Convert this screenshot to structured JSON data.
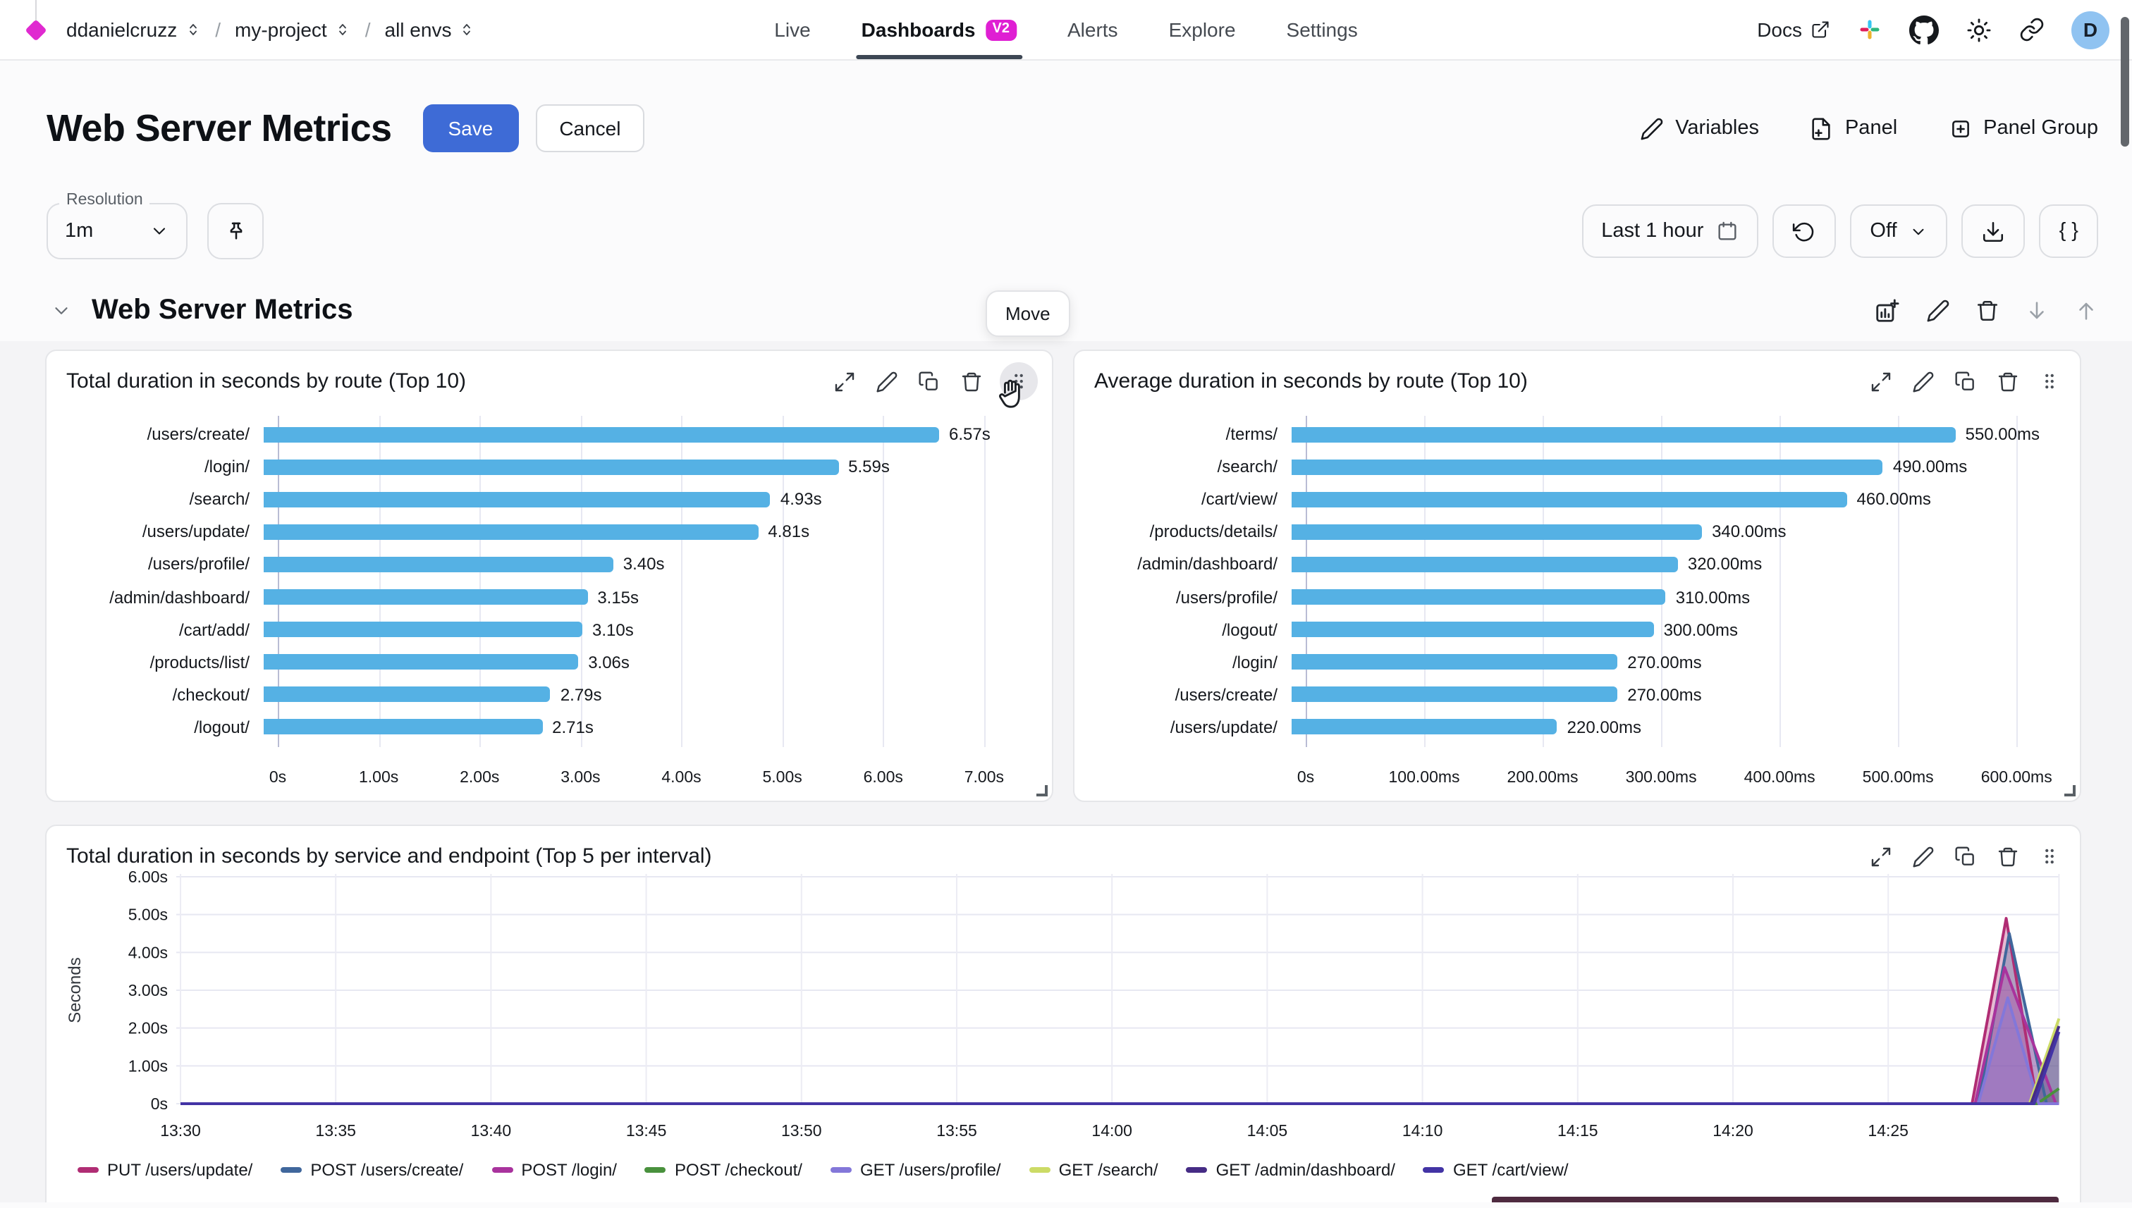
{
  "colors": {
    "accent_blue": "#3e6bd6",
    "bar_blue": "#55b1e4",
    "badge_magenta": "#df1fd3",
    "logo_magenta": "#e02ad0",
    "avatar_bg": "#90c3f1",
    "grid_line": "#e7e8f2",
    "axis_line": "#b9bcd4",
    "group_bg": "#f4f4f6"
  },
  "icons": [
    "diamond-logo",
    "chevrons-updown",
    "external-link",
    "slack",
    "github",
    "sun",
    "link",
    "pencil",
    "file-plus",
    "square-plus",
    "pin",
    "calendar",
    "refresh",
    "chevron-down",
    "download",
    "braces",
    "chart-plus",
    "trash",
    "arrow-down",
    "arrow-up",
    "expand",
    "copy",
    "grip-dots",
    "hand-cursor"
  ],
  "nav": {
    "breadcrumb": {
      "org": "ddanielcruzz",
      "project": "my-project",
      "env": "all envs",
      "separator": "/"
    },
    "items": [
      {
        "label": "Live",
        "active": false
      },
      {
        "label": "Dashboards",
        "active": true,
        "badge": "V2"
      },
      {
        "label": "Alerts",
        "active": false
      },
      {
        "label": "Explore",
        "active": false
      },
      {
        "label": "Settings",
        "active": false
      }
    ],
    "docs_label": "Docs",
    "avatar_initial": "D"
  },
  "header": {
    "title": "Web Server Metrics",
    "save_label": "Save",
    "cancel_label": "Cancel",
    "actions": [
      {
        "label": "Variables",
        "icon": "pencil-icon"
      },
      {
        "label": "Panel",
        "icon": "file-plus-icon"
      },
      {
        "label": "Panel Group",
        "icon": "square-plus-icon"
      }
    ]
  },
  "toolbar": {
    "resolution_label": "Resolution",
    "resolution_value": "1m",
    "time_range": "Last 1 hour",
    "refresh_off": "Off",
    "braces_label": "{ }"
  },
  "section": {
    "title": "Web Server Metrics",
    "move_tooltip": "Move"
  },
  "panels": [
    {
      "title": "Total duration in seconds by route (Top 10)"
    },
    {
      "title": "Average duration in seconds by route (Top 10)"
    },
    {
      "title": "Total duration in seconds by service and endpoint (Top 5 per interval)"
    }
  ],
  "chart_data": [
    {
      "type": "bar",
      "orientation": "horizontal",
      "title": "Total duration in seconds by route (Top 10)",
      "categories": [
        "/users/create/",
        "/login/",
        "/search/",
        "/users/update/",
        "/users/profile/",
        "/admin/dashboard/",
        "/cart/add/",
        "/products/list/",
        "/checkout/",
        "/logout/"
      ],
      "values": [
        6.57,
        5.59,
        4.93,
        4.81,
        3.4,
        3.15,
        3.1,
        3.06,
        2.79,
        2.71
      ],
      "value_labels": [
        "6.57s",
        "5.59s",
        "4.93s",
        "4.81s",
        "3.40s",
        "3.15s",
        "3.10s",
        "3.06s",
        "2.79s",
        "2.71s"
      ],
      "unit": "s",
      "xlim": [
        0,
        7.42
      ],
      "bar_color": "#55b1e4",
      "ticks": [
        {
          "value": 0,
          "label": "0s"
        },
        {
          "value": 1,
          "label": "1.00s"
        },
        {
          "value": 2,
          "label": "2.00s"
        },
        {
          "value": 3,
          "label": "3.00s"
        },
        {
          "value": 4,
          "label": "4.00s"
        },
        {
          "value": 5,
          "label": "5.00s"
        },
        {
          "value": 6,
          "label": "6.00s"
        },
        {
          "value": 7,
          "label": "7.00s"
        }
      ]
    },
    {
      "type": "bar",
      "orientation": "horizontal",
      "title": "Average duration in seconds by route (Top 10)",
      "categories": [
        "/terms/",
        "/search/",
        "/cart/view/",
        "/products/details/",
        "/admin/dashboard/",
        "/users/profile/",
        "/logout/",
        "/login/",
        "/users/create/",
        "/users/update/"
      ],
      "values": [
        550,
        490,
        460,
        340,
        320,
        310,
        300,
        270,
        270,
        220
      ],
      "value_labels": [
        "550.00ms",
        "490.00ms",
        "460.00ms",
        "340.00ms",
        "320.00ms",
        "310.00ms",
        "300.00ms",
        "270.00ms",
        "270.00ms",
        "220.00ms"
      ],
      "unit": "ms",
      "xlim": [
        0,
        632
      ],
      "bar_color": "#55b1e4",
      "ticks": [
        {
          "value": 0,
          "label": "0s"
        },
        {
          "value": 100,
          "label": "100.00ms"
        },
        {
          "value": 200,
          "label": "200.00ms"
        },
        {
          "value": 300,
          "label": "300.00ms"
        },
        {
          "value": 400,
          "label": "400.00ms"
        },
        {
          "value": 500,
          "label": "500.00ms"
        },
        {
          "value": 600,
          "label": "600.00ms"
        }
      ]
    },
    {
      "type": "area",
      "title": "Total duration in seconds by service and endpoint (Top 5 per interval)",
      "ylabel": "Seconds",
      "ylim": [
        0,
        6
      ],
      "yticks": [
        "0s",
        "1.00s",
        "2.00s",
        "3.00s",
        "4.00s",
        "5.00s",
        "6.00s"
      ],
      "xticks": [
        "13:30",
        "13:35",
        "13:40",
        "13:45",
        "13:50",
        "13:55",
        "14:00",
        "14:05",
        "14:10",
        "14:15",
        "14:20",
        "14:25"
      ],
      "x_minutes_per_tick": 5,
      "series": [
        {
          "name": "PUT /users/update/",
          "color": "#b02d74",
          "points": [
            [
              0,
              0
            ],
            [
              57.7,
              0
            ],
            [
              58.8,
              4.9
            ],
            [
              59.8,
              0
            ],
            [
              60.5,
              0
            ]
          ]
        },
        {
          "name": "POST /users/create/",
          "color": "#40679c",
          "points": [
            [
              0,
              0
            ],
            [
              57.9,
              0
            ],
            [
              58.9,
              4.5
            ],
            [
              60.1,
              0
            ],
            [
              60.5,
              0
            ]
          ]
        },
        {
          "name": "POST /login/",
          "color": "#a9339d",
          "points": [
            [
              0,
              0
            ],
            [
              57.8,
              0
            ],
            [
              58.75,
              3.6
            ],
            [
              60.4,
              0
            ],
            [
              60.5,
              0
            ]
          ]
        },
        {
          "name": "POST /checkout/",
          "color": "#49913d",
          "points": [
            [
              0,
              0
            ],
            [
              59.8,
              0
            ],
            [
              60.5,
              0.4
            ]
          ]
        },
        {
          "name": "GET /users/profile/",
          "color": "#8377d9",
          "points": [
            [
              0,
              0
            ],
            [
              57.9,
              0
            ],
            [
              58.85,
              2.8
            ],
            [
              59.85,
              0
            ],
            [
              60.5,
              0
            ]
          ]
        },
        {
          "name": "GET /search/",
          "color": "#ccdb66",
          "points": [
            [
              0,
              0
            ],
            [
              59.55,
              0
            ],
            [
              60.5,
              2.25
            ]
          ]
        },
        {
          "name": "GET /admin/dashboard/",
          "color": "#462c85",
          "points": [
            [
              0,
              0
            ],
            [
              59.6,
              0
            ],
            [
              60.5,
              2.05
            ]
          ]
        },
        {
          "name": "GET /cart/view/",
          "color": "#4334a5",
          "points": [
            [
              0,
              0
            ],
            [
              59.7,
              0
            ],
            [
              60.5,
              1.9
            ]
          ]
        }
      ]
    }
  ]
}
